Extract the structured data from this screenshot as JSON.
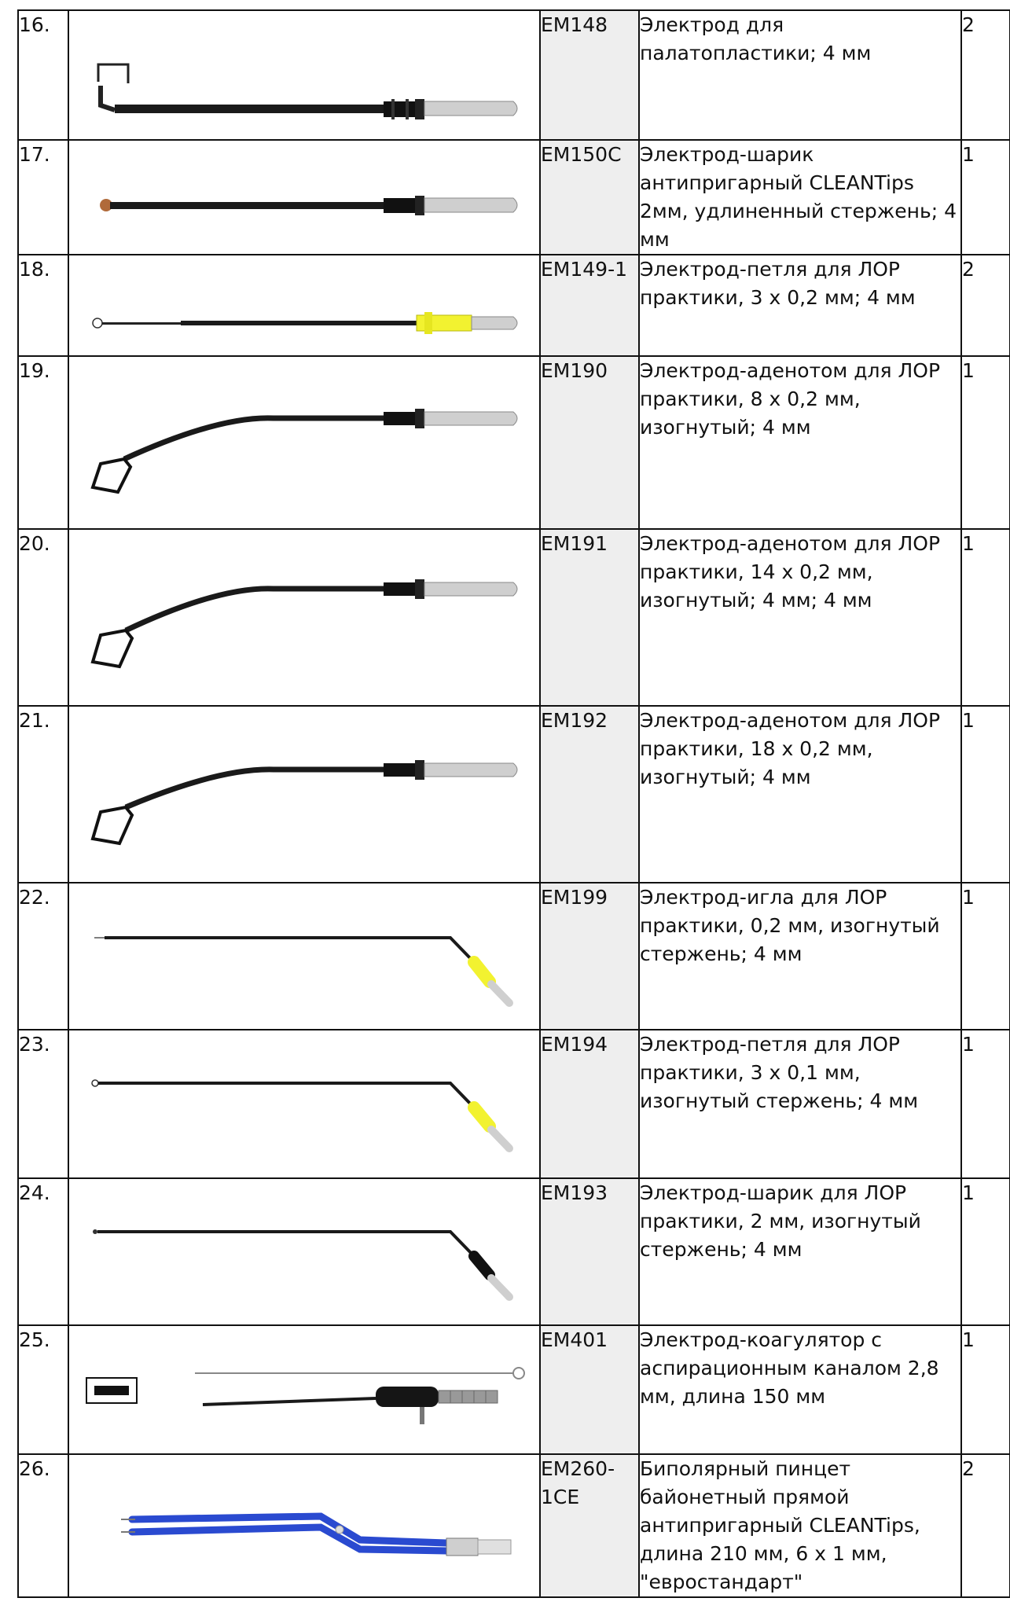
{
  "rows": [
    {
      "num": "16.",
      "code": "EM148",
      "desc": "Электрод для палатопластики; 4 мм",
      "qty": "2",
      "image": "palatoplasty-electrode"
    },
    {
      "num": "17.",
      "code": "EM150C",
      "desc": "Электрод-шарик антипригарный CLEANTips 2мм, удлиненный стержень; 4 мм",
      "qty": "1",
      "image": "ball-electrode-cleantips"
    },
    {
      "num": "18.",
      "code": "EM149-1",
      "desc": "Электрод-петля для ЛОР практики, 3 х 0,2 мм; 4 мм",
      "qty": "2",
      "image": "loop-electrode-yellow"
    },
    {
      "num": "19.",
      "code": "EM190",
      "desc": "Электрод-аденотом для ЛОР практики, 8 х 0,2 мм, изогнутый; 4 мм",
      "qty": "1",
      "image": "adenotome-electrode"
    },
    {
      "num": "20.",
      "code": "EM191",
      "desc": "Электрод-аденотом для ЛОР практики, 14 х 0,2 мм, изогнутый; 4 мм; 4 мм",
      "qty": "1",
      "image": "adenotome-electrode"
    },
    {
      "num": "21.",
      "code": "EM192",
      "desc": "Электрод-аденотом для ЛОР практики, 18 х 0,2 мм, изогнутый; 4 мм",
      "qty": "1",
      "image": "adenotome-electrode"
    },
    {
      "num": "22.",
      "code": "EM199",
      "desc": "Электрод-игла для ЛОР практики, 0,2 мм, изогнутый стержень; 4 мм",
      "qty": "1",
      "image": "needle-electrode-bent"
    },
    {
      "num": "23.",
      "code": "EM194",
      "desc": "Электрод-петля для ЛОР практики, 3 х 0,1 мм, изогнутый стержень; 4 мм",
      "qty": "1",
      "image": "loop-electrode-bent"
    },
    {
      "num": "24.",
      "code": "EM193",
      "desc": "Электрод-шарик для ЛОР практики, 2 мм, изогнутый стержень; 4 мм",
      "qty": "1",
      "image": "ball-electrode-bent"
    },
    {
      "num": "25.",
      "code": "EM401",
      "desc": "Электрод-коагулятор с аспирационным каналом 2,8 мм, длина 150 мм",
      "qty": "1",
      "image": "suction-coagulator"
    },
    {
      "num": "26.",
      "code": "EM260-1CE",
      "desc": "Биполярный пинцет байонетный прямой антипригарный CLEANTips, длина 210 мм, 6 х 1 мм, \"евростандарт\"",
      "qty": "2",
      "image": "bipolar-forceps"
    }
  ],
  "colors": {
    "shaft": "#1a1a1a",
    "tip": "#cfcfcf",
    "yellow": "#f2f230",
    "blue": "#2a4ad0",
    "copper": "#b06a3a"
  }
}
